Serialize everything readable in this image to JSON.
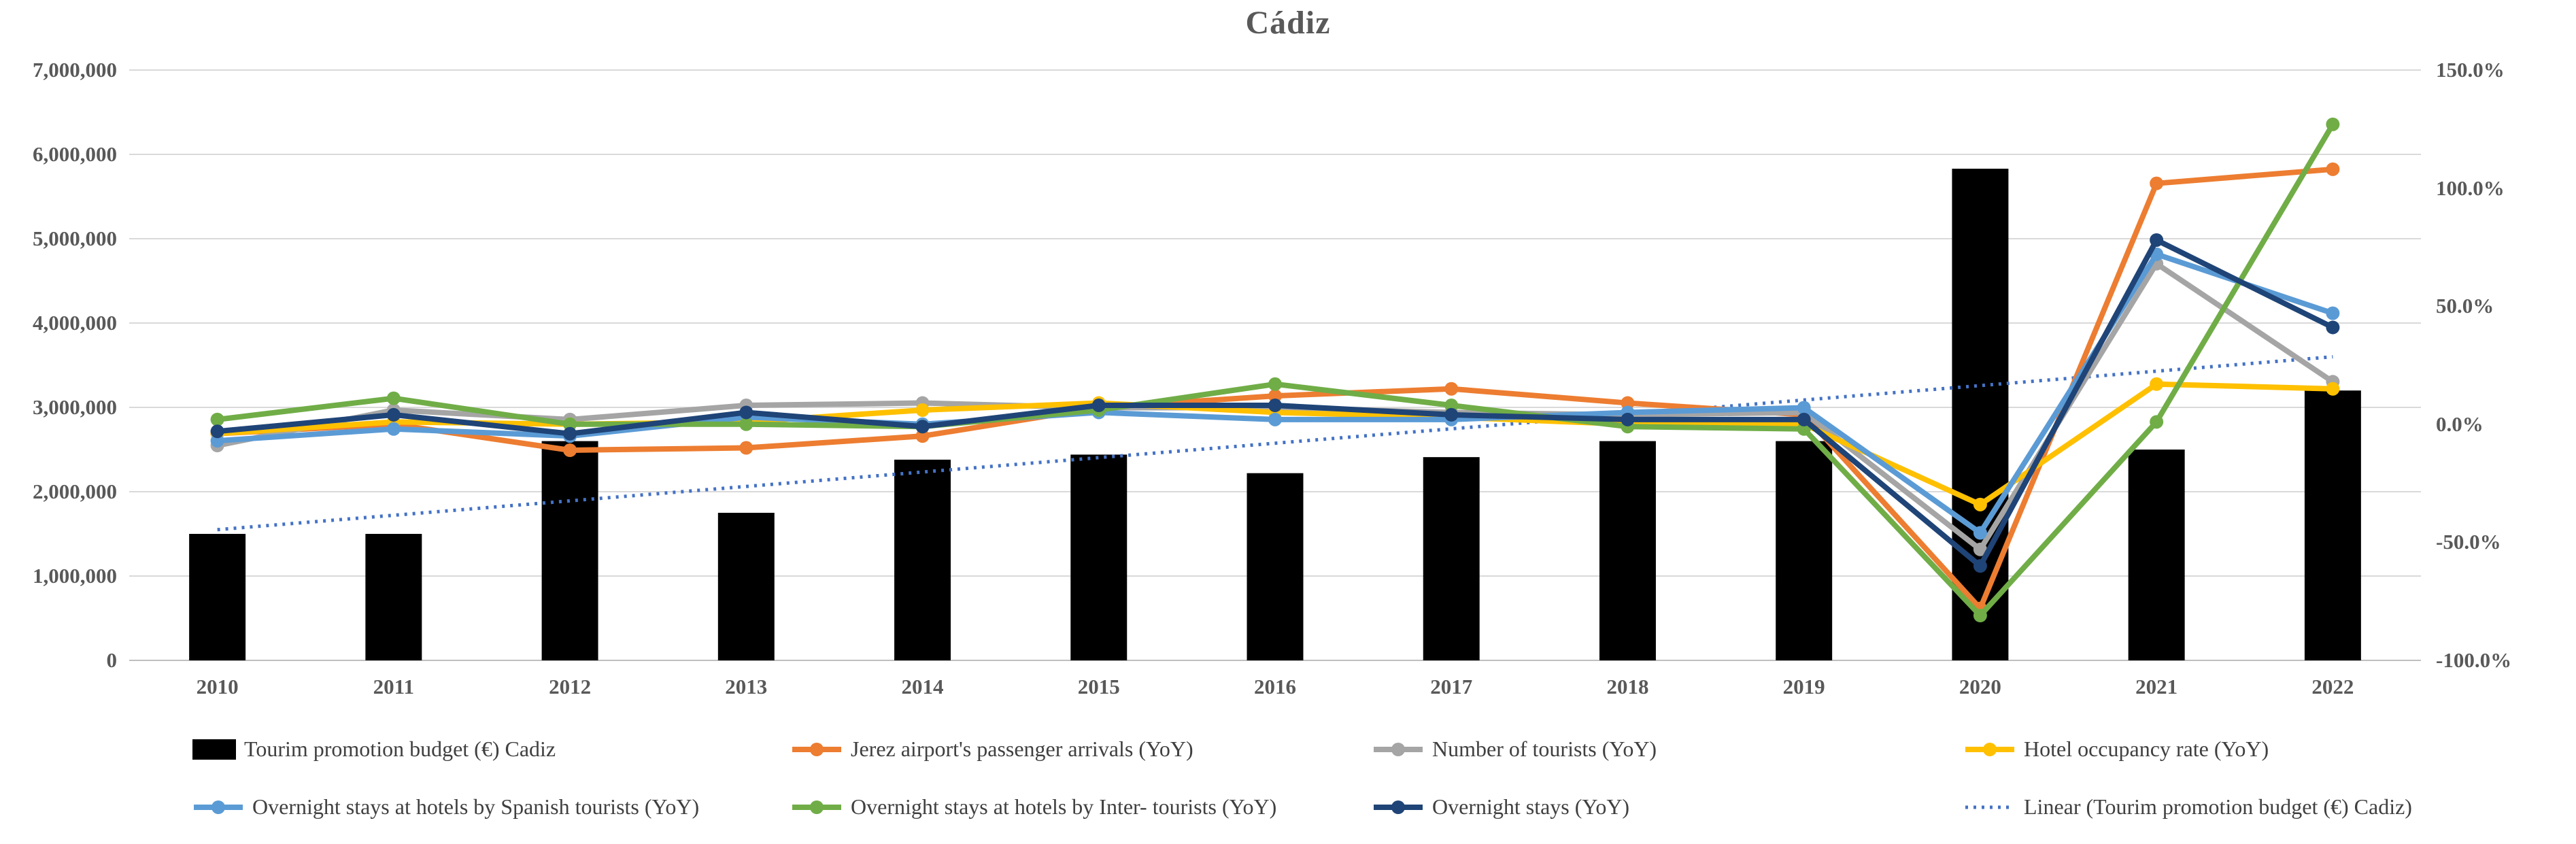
{
  "title": "Cádiz",
  "chart_data": {
    "type": "combo-bar-line",
    "title": "Cádiz",
    "categories": [
      "2010",
      "2011",
      "2012",
      "2013",
      "2014",
      "2015",
      "2016",
      "2017",
      "2018",
      "2019",
      "2020",
      "2021",
      "2022"
    ],
    "left_axis": {
      "min": 0,
      "max": 7000000,
      "tick_step": 1000000,
      "tick_labels_top_to_bottom": [
        "7,000,000",
        "6,000,000",
        "5,000,000",
        "4,000,000",
        "3,000,000",
        "2,000,000",
        "1,000,000",
        "0"
      ],
      "grid": true
    },
    "right_axis": {
      "min": -100,
      "max": 150,
      "tick_step": 50,
      "tick_labels_top_to_bottom": [
        "150.0%",
        "100.0%",
        "50.0%",
        "0.0%",
        "-50.0%",
        "-100.0%"
      ],
      "tick_values_top_to_bottom": [
        150,
        100,
        50,
        0,
        -50,
        -100
      ]
    },
    "bar_series": {
      "name": "Tourim promotion budget (€) Cadiz",
      "axis": "left",
      "color": "#000000",
      "values": [
        1500000,
        1500000,
        2600000,
        1750000,
        2380000,
        2440000,
        2220000,
        2410000,
        2600000,
        2600000,
        5830000,
        2500000,
        3200000
      ]
    },
    "line_series": [
      {
        "name": "Jerez airport's passenger arrivals (YoY)",
        "axis": "right",
        "color": "#ED7D31",
        "values_pct": [
          -4,
          0,
          -11,
          -10,
          -5,
          7,
          12,
          15,
          9,
          4,
          -78,
          102,
          108
        ]
      },
      {
        "name": "Number of tourists (YoY)",
        "axis": "right",
        "color": "#A5A5A5",
        "values_pct": [
          -9,
          6,
          2,
          8,
          9,
          7,
          7,
          5,
          4,
          5,
          -53,
          68,
          18
        ]
      },
      {
        "name": "Hotel occupancy rate (YoY)",
        "axis": "right",
        "color": "#FFC000",
        "values_pct": [
          -4,
          1,
          0,
          1,
          6,
          9,
          5,
          3,
          0,
          0,
          -34,
          17,
          15
        ]
      },
      {
        "name": "Overnight stays at hotels by Spanish tourists (YoY)",
        "axis": "right",
        "color": "#5B9BD5",
        "values_pct": [
          -7,
          -2,
          -5,
          3,
          0,
          5,
          2,
          2,
          5,
          7,
          -46,
          72,
          47
        ]
      },
      {
        "name": "Overnight stays at hotels by Inter- tourists (YoY)",
        "axis": "right",
        "color": "#70AD47",
        "values_pct": [
          2,
          11,
          0,
          0,
          -1,
          6,
          17,
          8,
          -1,
          -2,
          -81,
          1,
          127
        ]
      },
      {
        "name": "Overnight stays (YoY)",
        "axis": "right",
        "color": "#1F4477",
        "values_pct": [
          -3,
          4,
          -4,
          5,
          -1,
          8,
          8,
          4,
          2,
          2,
          -60,
          78,
          41
        ]
      }
    ],
    "trendline": {
      "name": "Linear (Tourim promotion budget (€) Cadiz)",
      "axis": "left",
      "color": "#4472C4",
      "style": "dotted",
      "start_value": 1550000,
      "end_value": 3600000
    },
    "legend": {
      "items": [
        {
          "label": "Tourim promotion budget (€) Cadiz",
          "swatch": "bar",
          "color": "#000000",
          "row": 0,
          "col": 0
        },
        {
          "label": "Jerez airport's passenger arrivals (YoY)",
          "swatch": "line-marker",
          "color": "#ED7D31",
          "row": 0,
          "col": 1
        },
        {
          "label": "Number of tourists (YoY)",
          "swatch": "line-marker",
          "color": "#A5A5A5",
          "row": 0,
          "col": 2
        },
        {
          "label": "Hotel occupancy rate (YoY)",
          "swatch": "line-marker",
          "color": "#FFC000",
          "row": 0,
          "col": 3
        },
        {
          "label": "Overnight stays at hotels by Spanish tourists (YoY)",
          "swatch": "line-marker",
          "color": "#5B9BD5",
          "row": 1,
          "col": 0
        },
        {
          "label": "Overnight stays at hotels by Inter- tourists (YoY)",
          "swatch": "line-marker",
          "color": "#70AD47",
          "row": 1,
          "col": 1
        },
        {
          "label": "Overnight stays (YoY)",
          "swatch": "line-marker",
          "color": "#1F4477",
          "row": 1,
          "col": 2
        },
        {
          "label": "Linear (Tourim promotion budget (€) Cadiz)",
          "swatch": "dotted-line",
          "color": "#4472C4",
          "row": 1,
          "col": 3
        }
      ]
    },
    "style_colors": {
      "gridline": "#D9D9D9",
      "axis_line": "#BFBFBF",
      "title_text": "#595959",
      "tick_text": "#595959",
      "legend_text": "#404040",
      "background": "#FFFFFF"
    }
  }
}
